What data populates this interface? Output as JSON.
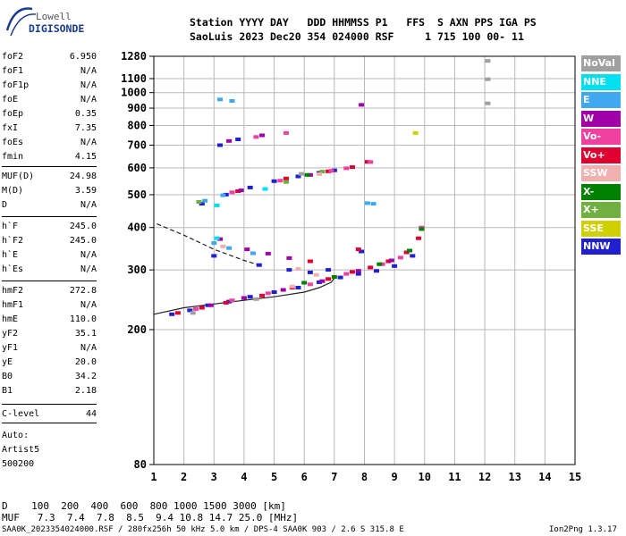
{
  "logo": {
    "line1": "Lowell",
    "line2": "DIGISONDE"
  },
  "header": {
    "line1": "Station YYYY DAY   DDD HHMMSS P1   FFS  S AXN PPS IGA PS",
    "line2": "SaoLuis 2023 Dec20 354 024000 RSF     1 715 100 00- 11"
  },
  "params": [
    {
      "name": "foF2",
      "value": "6.950"
    },
    {
      "name": "foF1",
      "value": "N/A"
    },
    {
      "name": "foF1p",
      "value": "N/A"
    },
    {
      "name": "foE",
      "value": "N/A"
    },
    {
      "name": "foEp",
      "value": "0.35"
    },
    {
      "name": "fxI",
      "value": "7.35"
    },
    {
      "name": "foEs",
      "value": "N/A"
    },
    {
      "name": "fmin",
      "value": "4.15"
    },
    {
      "name": "MUF(D)",
      "value": "24.98"
    },
    {
      "name": "M(D)",
      "value": "3.59"
    },
    {
      "name": "D",
      "value": "N/A"
    },
    {
      "name": "h`F",
      "value": "245.0"
    },
    {
      "name": "h`F2",
      "value": "245.0"
    },
    {
      "name": "h`E",
      "value": "N/A"
    },
    {
      "name": "h`Es",
      "value": "N/A"
    },
    {
      "name": "hmF2",
      "value": "272.8"
    },
    {
      "name": "hmF1",
      "value": "N/A"
    },
    {
      "name": "hmE",
      "value": "110.0"
    },
    {
      "name": "yF2",
      "value": "35.1"
    },
    {
      "name": "yF1",
      "value": "N/A"
    },
    {
      "name": "yE",
      "value": "20.0"
    },
    {
      "name": "B0",
      "value": "34.2"
    },
    {
      "name": "B1",
      "value": "2.18"
    },
    {
      "name": "C-level",
      "value": "44"
    }
  ],
  "autoscale": {
    "line1": "Auto:",
    "line2": "Artist5",
    "line3": "500200"
  },
  "legend": [
    {
      "label": "NoVal",
      "color": "#a0a0a0"
    },
    {
      "label": "NNE",
      "color": "#00e0f0"
    },
    {
      "label": "E",
      "color": "#40a8f0"
    },
    {
      "label": "W",
      "color": "#a000a8"
    },
    {
      "label": "Vo-",
      "color": "#f040a0"
    },
    {
      "label": "Vo+",
      "color": "#e00030"
    },
    {
      "label": "SSW",
      "color": "#f0b0b0"
    },
    {
      "label": "X-",
      "color": "#008000"
    },
    {
      "label": "X+",
      "color": "#70b040"
    },
    {
      "label": "SSE",
      "color": "#d0d000"
    },
    {
      "label": "NNW",
      "color": "#2020d0"
    }
  ],
  "footer": {
    "d_row": "D    100  200  400  600  800 1000 1500 3000 [km]",
    "muf_row": "MUF   7.3  7.4  7.8  8.5  9.4 10.8 14.7 25.0 [MHz]",
    "file_info": "SAA0K_2023354024000.RSF / 280fx256h 50 kHz 5.0 km / DPS-4 SAA0K 903 / 2.6 S 315.8 E",
    "version": "Ion2Png 1.3.17"
  },
  "chart_data": {
    "type": "scatter",
    "title": "",
    "xlabel": "",
    "ylabel": "",
    "xlim": [
      1,
      15
    ],
    "ylim": [
      80,
      1280
    ],
    "y_scale": "log",
    "grid": true,
    "x_ticks": [
      "1",
      "2",
      "3",
      "4",
      "5",
      "6",
      "7",
      "8",
      "9",
      "10",
      "11",
      "12",
      "13",
      "14",
      "15"
    ],
    "y_ticks": [
      "80",
      "200",
      "300",
      "400",
      "500",
      "600",
      "700",
      "800",
      "900",
      "1000",
      "1100",
      "1280"
    ],
    "series": [
      {
        "name": "NNW",
        "points": [
          [
            1.6,
            222
          ],
          [
            2.2,
            228
          ],
          [
            2.8,
            236
          ],
          [
            3.5,
            242
          ],
          [
            4.2,
            250
          ],
          [
            5.0,
            258
          ],
          [
            5.8,
            266
          ],
          [
            6.5,
            276
          ],
          [
            7.2,
            285
          ],
          [
            7.8,
            292
          ],
          [
            8.4,
            298
          ],
          [
            9.0,
            308
          ],
          [
            9.6,
            330
          ],
          [
            2.6,
            470
          ],
          [
            3.4,
            500
          ],
          [
            4.2,
            525
          ],
          [
            5.0,
            548
          ],
          [
            5.8,
            566
          ],
          [
            6.5,
            580
          ],
          [
            7.0,
            590
          ],
          [
            3.0,
            330
          ],
          [
            4.5,
            310
          ],
          [
            5.5,
            300
          ],
          [
            6.2,
            295
          ],
          [
            3.2,
            700
          ],
          [
            3.8,
            728
          ],
          [
            6.8,
            300
          ],
          [
            7.9,
            340
          ]
        ]
      },
      {
        "name": "Vo+",
        "points": [
          [
            1.8,
            224
          ],
          [
            2.6,
            232
          ],
          [
            3.4,
            240
          ],
          [
            4.6,
            252
          ],
          [
            5.6,
            266
          ],
          [
            6.8,
            282
          ],
          [
            7.6,
            296
          ],
          [
            8.2,
            305
          ],
          [
            8.8,
            318
          ],
          [
            9.4,
            338
          ],
          [
            9.8,
            372
          ],
          [
            3.8,
            512
          ],
          [
            5.4,
            558
          ],
          [
            6.8,
            586
          ],
          [
            7.6,
            603
          ],
          [
            8.1,
            625
          ],
          [
            6.2,
            318
          ],
          [
            7.8,
            345
          ]
        ]
      },
      {
        "name": "Vo-",
        "points": [
          [
            2.4,
            230
          ],
          [
            3.6,
            244
          ],
          [
            4.8,
            256
          ],
          [
            6.2,
            272
          ],
          [
            7.4,
            292
          ],
          [
            8.6,
            312
          ],
          [
            9.2,
            326
          ],
          [
            9.9,
            400
          ],
          [
            3.6,
            508
          ],
          [
            5.2,
            550
          ],
          [
            6.9,
            588
          ],
          [
            7.4,
            598
          ],
          [
            8.2,
            624
          ],
          [
            4.4,
            740
          ],
          [
            5.4,
            760
          ]
        ]
      },
      {
        "name": "W",
        "points": [
          [
            2.9,
            236
          ],
          [
            4.0,
            248
          ],
          [
            5.3,
            262
          ],
          [
            6.6,
            278
          ],
          [
            7.8,
            298
          ],
          [
            8.9,
            320
          ],
          [
            3.2,
            370
          ],
          [
            4.1,
            345
          ],
          [
            4.8,
            335
          ],
          [
            5.5,
            325
          ],
          [
            3.9,
            515
          ],
          [
            6.2,
            572
          ],
          [
            3.5,
            720
          ],
          [
            4.6,
            748
          ],
          [
            7.9,
            920
          ]
        ]
      },
      {
        "name": "E",
        "points": [
          [
            3.0,
            360
          ],
          [
            3.5,
            348
          ],
          [
            4.3,
            336
          ],
          [
            8.1,
            472
          ],
          [
            8.3,
            470
          ],
          [
            2.7,
            480
          ],
          [
            3.3,
            498
          ],
          [
            3.2,
            955
          ],
          [
            3.6,
            945
          ]
        ]
      },
      {
        "name": "NNE",
        "points": [
          [
            3.1,
            372
          ],
          [
            4.7,
            520
          ],
          [
            3.1,
            465
          ]
        ]
      },
      {
        "name": "X-",
        "points": [
          [
            6.0,
            275
          ],
          [
            7.0,
            286
          ],
          [
            8.5,
            312
          ],
          [
            9.5,
            342
          ],
          [
            9.9,
            396
          ],
          [
            6.1,
            572
          ]
        ]
      },
      {
        "name": "X+",
        "points": [
          [
            5.4,
            545
          ],
          [
            6.6,
            585
          ],
          [
            2.5,
            476
          ]
        ]
      },
      {
        "name": "SSW",
        "points": [
          [
            3.3,
            352
          ],
          [
            5.8,
            302
          ],
          [
            6.4,
            290
          ],
          [
            6.5,
            575
          ],
          [
            5.6,
            268
          ]
        ]
      },
      {
        "name": "NoVal",
        "points": [
          [
            2.3,
            224
          ],
          [
            4.4,
            246
          ],
          [
            5.9,
            576
          ],
          [
            12.1,
            1240
          ],
          [
            12.1,
            1095
          ],
          [
            12.1,
            930
          ]
        ]
      },
      {
        "name": "SSE",
        "points": [
          [
            9.7,
            760
          ]
        ]
      }
    ],
    "model_curves": [
      {
        "style": "dashed",
        "points": [
          [
            1.1,
            410
          ],
          [
            2.0,
            380
          ],
          [
            3.0,
            345
          ],
          [
            4.0,
            320
          ],
          [
            4.6,
            308
          ]
        ]
      },
      {
        "style": "solid",
        "points": [
          [
            1.0,
            222
          ],
          [
            2.0,
            232
          ],
          [
            3.0,
            238
          ],
          [
            4.0,
            244
          ],
          [
            5.0,
            250
          ],
          [
            6.0,
            258
          ],
          [
            6.5,
            266
          ],
          [
            6.9,
            276
          ],
          [
            7.0,
            284
          ]
        ]
      }
    ]
  }
}
